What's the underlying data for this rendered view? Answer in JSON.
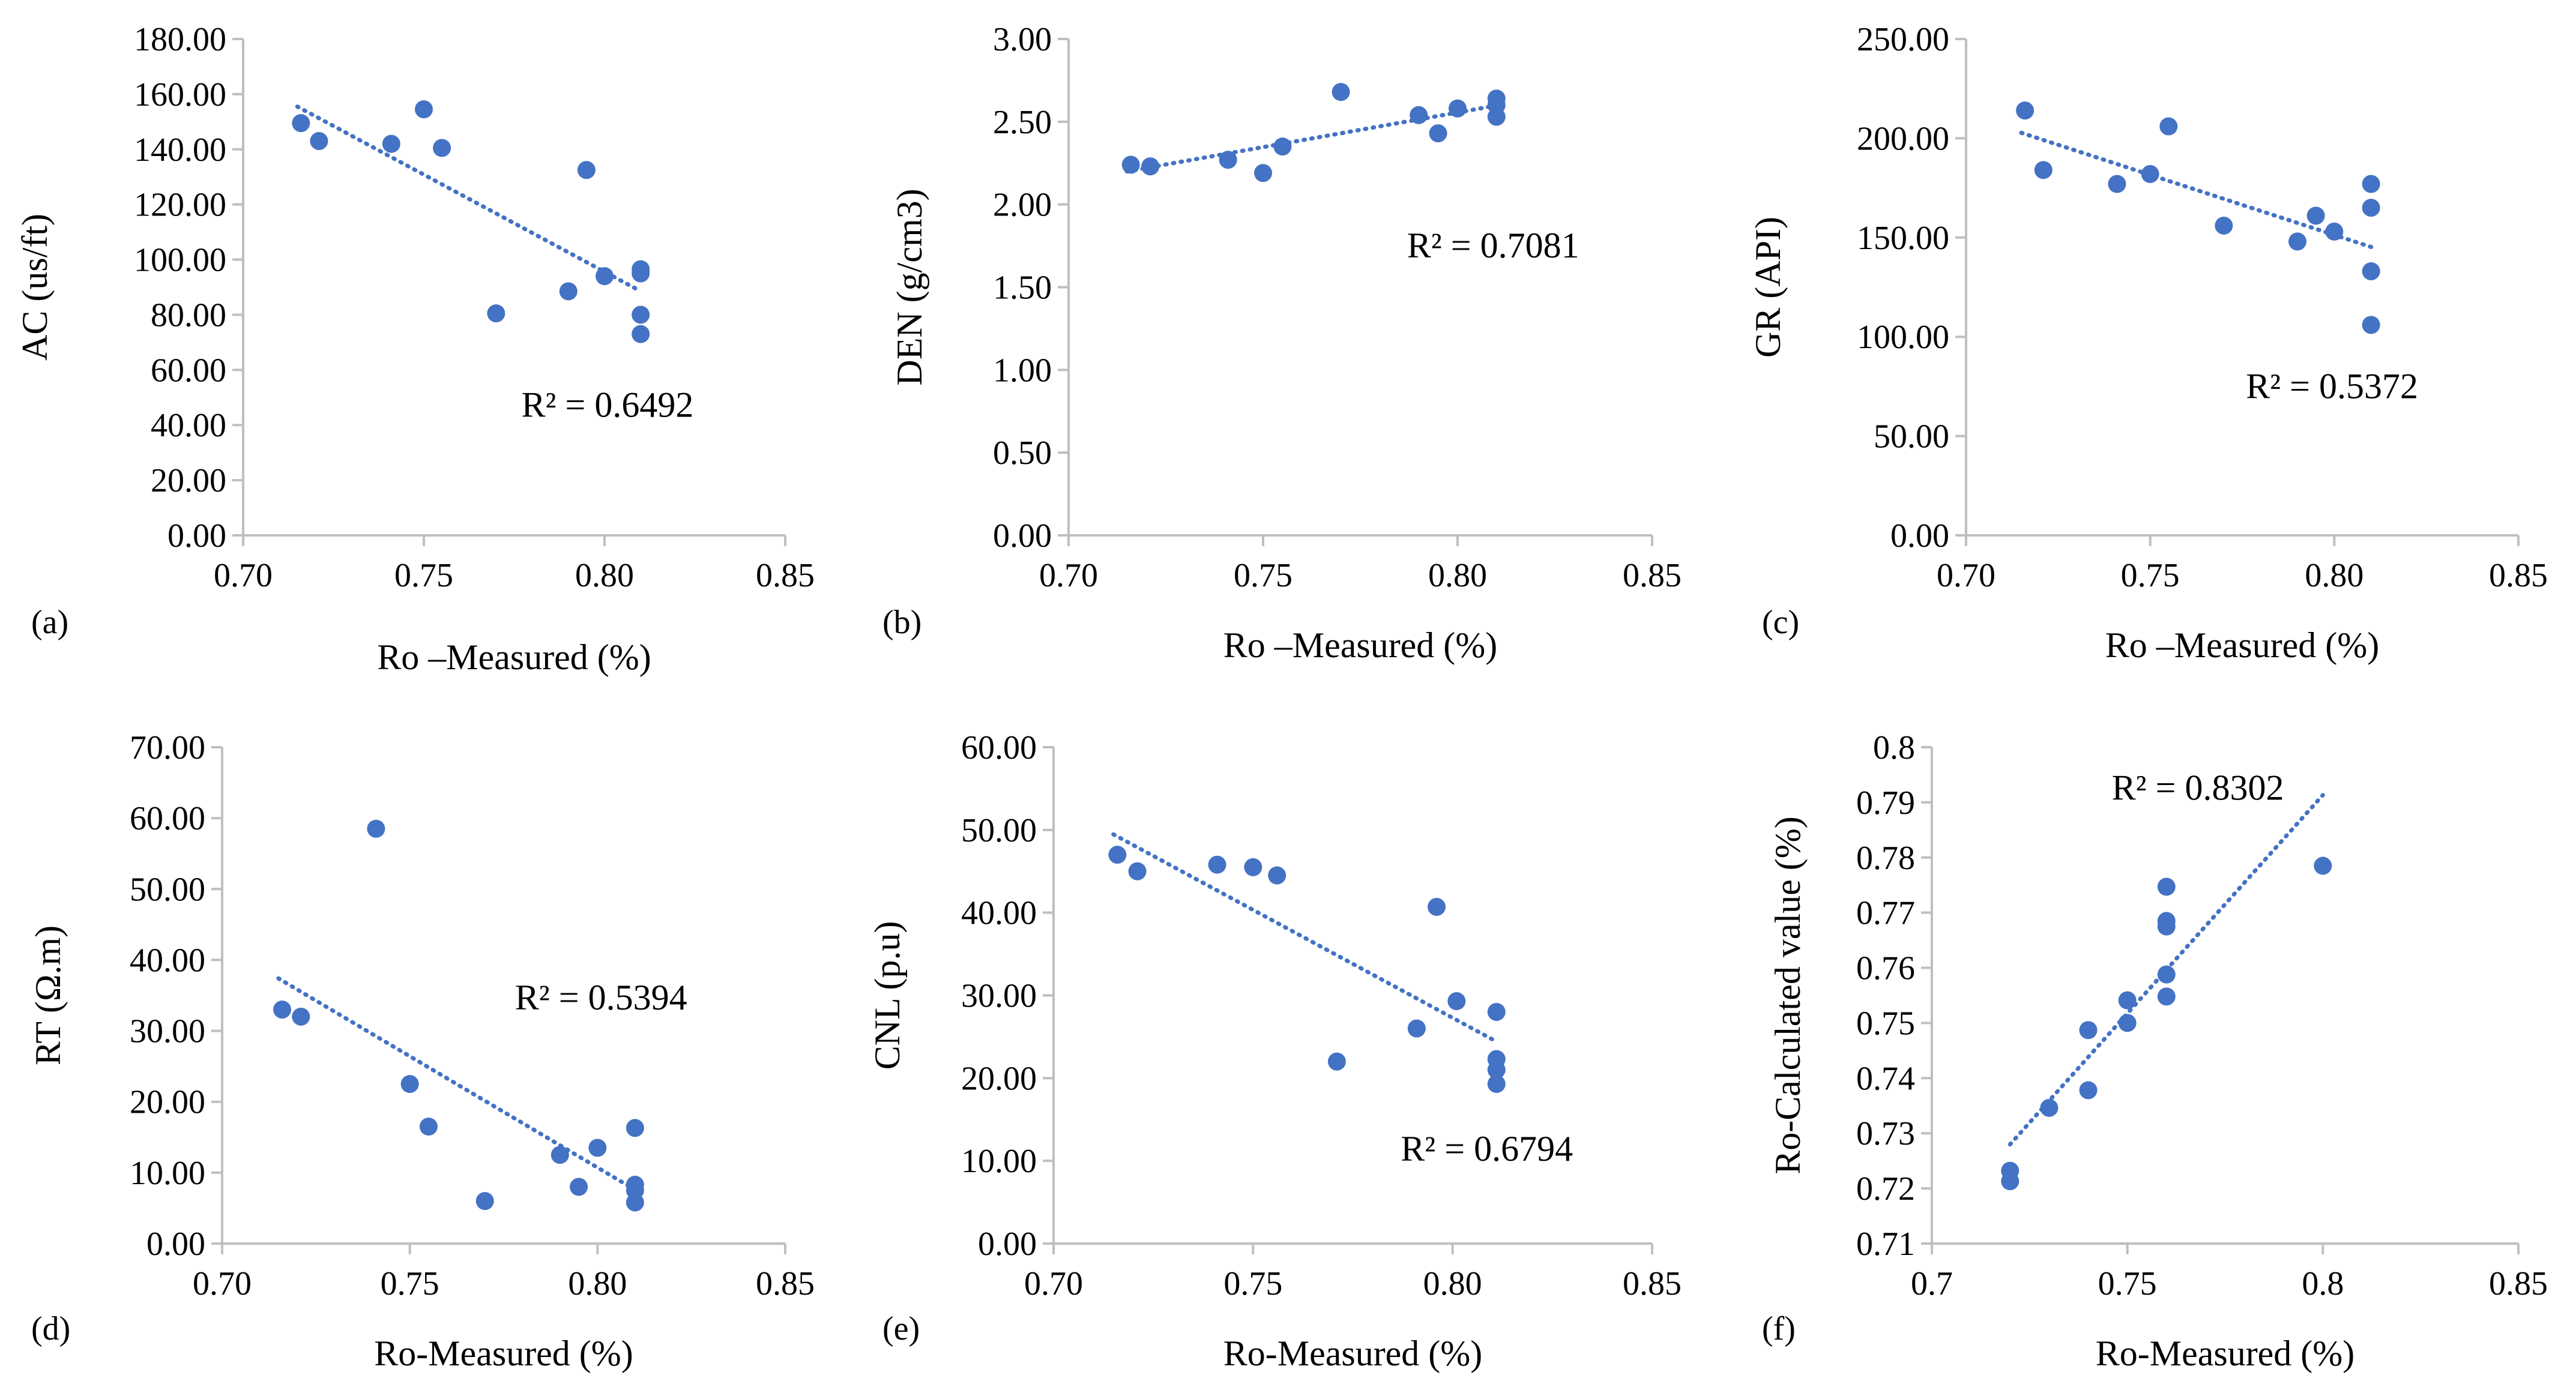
{
  "colors": {
    "series": "#4472C4",
    "axis": "#BFBFBF",
    "text": "#000000"
  },
  "chart_data": [
    {
      "panel": "(a)",
      "type": "scatter",
      "xlabel": "Ro –Measured (%)",
      "ylabel": "AC (us/ft)",
      "xlim": [
        0.7,
        0.85
      ],
      "ylim": [
        0,
        180
      ],
      "x_ticks": [
        0.7,
        0.75,
        0.8,
        0.85
      ],
      "x_tick_labels": [
        "0.70",
        "0.75",
        "0.80",
        "0.85"
      ],
      "y_ticks": [
        0,
        20,
        40,
        60,
        80,
        100,
        120,
        140,
        160,
        180
      ],
      "y_tick_labels": [
        "0.00",
        "20.00",
        "40.00",
        "60.00",
        "80.00",
        "100.00",
        "120.00",
        "140.00",
        "160.00",
        "180.00"
      ],
      "points": [
        [
          0.716,
          149.5
        ],
        [
          0.721,
          143
        ],
        [
          0.741,
          142
        ],
        [
          0.75,
          154.5
        ],
        [
          0.755,
          140.5
        ],
        [
          0.77,
          80.5
        ],
        [
          0.79,
          88.5
        ],
        [
          0.795,
          132.5
        ],
        [
          0.8,
          94
        ],
        [
          0.81,
          96.5
        ],
        [
          0.81,
          95
        ],
        [
          0.81,
          80
        ],
        [
          0.81,
          73
        ]
      ],
      "trendline": {
        "x0": 0.715,
        "x1": 0.81
      },
      "r2_label": "R² = 0.6492",
      "r2_anchor": [
        0.777,
        43
      ]
    },
    {
      "panel": "(b)",
      "type": "scatter",
      "xlabel": "Ro –Measured (%)",
      "ylabel": "DEN (g/cm3)",
      "xlim": [
        0.7,
        0.85
      ],
      "ylim": [
        0,
        3
      ],
      "x_ticks": [
        0.7,
        0.75,
        0.8,
        0.85
      ],
      "x_tick_labels": [
        "0.70",
        "0.75",
        "0.80",
        "0.85"
      ],
      "y_ticks": [
        0,
        0.5,
        1,
        1.5,
        2,
        2.5,
        3
      ],
      "y_tick_labels": [
        "0.00",
        "0.50",
        "1.00",
        "1.50",
        "2.00",
        "2.50",
        "3.00"
      ],
      "points": [
        [
          0.716,
          2.24
        ],
        [
          0.721,
          2.23
        ],
        [
          0.741,
          2.27
        ],
        [
          0.75,
          2.19
        ],
        [
          0.755,
          2.35
        ],
        [
          0.77,
          2.68
        ],
        [
          0.79,
          2.54
        ],
        [
          0.795,
          2.43
        ],
        [
          0.8,
          2.58
        ],
        [
          0.81,
          2.64
        ],
        [
          0.81,
          2.6
        ],
        [
          0.81,
          2.53
        ]
      ],
      "trendline": {
        "x0": 0.715,
        "x1": 0.81
      },
      "r2_label": "R² = 0.7081",
      "r2_anchor": [
        0.787,
        1.68
      ]
    },
    {
      "panel": "(c)",
      "type": "scatter",
      "xlabel": "Ro –Measured (%)",
      "ylabel": "GR (API)",
      "xlim": [
        0.7,
        0.85
      ],
      "ylim": [
        0,
        250
      ],
      "x_ticks": [
        0.7,
        0.75,
        0.8,
        0.85
      ],
      "x_tick_labels": [
        "0.70",
        "0.75",
        "0.80",
        "0.85"
      ],
      "y_ticks": [
        0,
        50,
        100,
        150,
        200,
        250
      ],
      "y_tick_labels": [
        "0.00",
        "50.00",
        "100.00",
        "150.00",
        "200.00",
        "250.00"
      ],
      "points": [
        [
          0.716,
          214
        ],
        [
          0.721,
          184
        ],
        [
          0.741,
          177
        ],
        [
          0.75,
          182
        ],
        [
          0.755,
          206
        ],
        [
          0.77,
          156
        ],
        [
          0.79,
          148
        ],
        [
          0.795,
          161
        ],
        [
          0.8,
          153
        ],
        [
          0.81,
          177
        ],
        [
          0.81,
          165
        ],
        [
          0.81,
          133
        ],
        [
          0.81,
          106
        ]
      ],
      "trendline": {
        "x0": 0.715,
        "x1": 0.81
      },
      "r2_label": "R² = 0.5372",
      "r2_anchor": [
        0.776,
        69
      ]
    },
    {
      "panel": "(d)",
      "type": "scatter",
      "xlabel": "Ro-Measured  (%)",
      "ylabel": "RT (Ω.m)",
      "xlim": [
        0.7,
        0.85
      ],
      "ylim": [
        0,
        70
      ],
      "x_ticks": [
        0.7,
        0.75,
        0.8,
        0.85
      ],
      "x_tick_labels": [
        "0.70",
        "0.75",
        "0.80",
        "0.85"
      ],
      "y_ticks": [
        0,
        10,
        20,
        30,
        40,
        50,
        60,
        70
      ],
      "y_tick_labels": [
        "0.00",
        "10.00",
        "20.00",
        "30.00",
        "40.00",
        "50.00",
        "60.00",
        "70.00"
      ],
      "points": [
        [
          0.716,
          33
        ],
        [
          0.721,
          32
        ],
        [
          0.741,
          58.5
        ],
        [
          0.75,
          22.5
        ],
        [
          0.755,
          16.5
        ],
        [
          0.77,
          6
        ],
        [
          0.79,
          12.5
        ],
        [
          0.795,
          8
        ],
        [
          0.8,
          13.5
        ],
        [
          0.81,
          16.3
        ],
        [
          0.81,
          8.3
        ],
        [
          0.81,
          7.5
        ],
        [
          0.81,
          5.8
        ]
      ],
      "trendline": {
        "x0": 0.715,
        "x1": 0.81
      },
      "r2_label": "R² = 0.5394",
      "r2_anchor": [
        0.778,
        33
      ]
    },
    {
      "panel": "(e)",
      "type": "scatter",
      "xlabel": "Ro-Measured (%)",
      "ylabel": "CNL (p.u)",
      "xlim": [
        0.7,
        0.85
      ],
      "ylim": [
        0,
        60
      ],
      "x_ticks": [
        0.7,
        0.75,
        0.8,
        0.85
      ],
      "x_tick_labels": [
        "0.70",
        "0.75",
        "0.80",
        "0.85"
      ],
      "y_ticks": [
        0,
        10,
        20,
        30,
        40,
        50,
        60
      ],
      "y_tick_labels": [
        "0.00",
        "10.00",
        "20.00",
        "30.00",
        "40.00",
        "50.00",
        "60.00"
      ],
      "points": [
        [
          0.716,
          47
        ],
        [
          0.721,
          45
        ],
        [
          0.741,
          45.8
        ],
        [
          0.75,
          45.5
        ],
        [
          0.756,
          44.5
        ],
        [
          0.771,
          22
        ],
        [
          0.791,
          26
        ],
        [
          0.796,
          40.7
        ],
        [
          0.801,
          29.3
        ],
        [
          0.811,
          28
        ],
        [
          0.811,
          22.3
        ],
        [
          0.811,
          21
        ],
        [
          0.811,
          19.3
        ]
      ],
      "trendline": {
        "x0": 0.715,
        "x1": 0.81
      },
      "r2_label": "R² = 0.6794",
      "r2_anchor": [
        0.787,
        10
      ]
    },
    {
      "panel": "(f)",
      "type": "scatter",
      "xlabel": "Ro-Measured (%)",
      "ylabel": "Ro-Calculated value (%)",
      "xlim": [
        0.7,
        0.85
      ],
      "ylim": [
        0.71,
        0.8
      ],
      "x_ticks": [
        0.7,
        0.75,
        0.8,
        0.85
      ],
      "x_tick_labels": [
        "0.7",
        "0.75",
        "0.8",
        "0.85"
      ],
      "y_ticks": [
        0.71,
        0.72,
        0.73,
        0.74,
        0.75,
        0.76,
        0.77,
        0.78,
        0.79,
        0.8
      ],
      "y_tick_labels": [
        "0.71",
        "0.72",
        "0.73",
        "0.74",
        "0.75",
        "0.76",
        "0.77",
        "0.78",
        "0.79",
        "0.8"
      ],
      "points": [
        [
          0.72,
          0.7232
        ],
        [
          0.72,
          0.7213
        ],
        [
          0.73,
          0.7346
        ],
        [
          0.74,
          0.7487
        ],
        [
          0.74,
          0.7378
        ],
        [
          0.75,
          0.7541
        ],
        [
          0.75,
          0.75
        ],
        [
          0.76,
          0.7747
        ],
        [
          0.76,
          0.7685
        ],
        [
          0.76,
          0.7675
        ],
        [
          0.76,
          0.7588
        ],
        [
          0.76,
          0.7548
        ],
        [
          0.8,
          0.7785
        ]
      ],
      "trendline": {
        "x0": 0.72,
        "x1": 0.8
      },
      "r2_label": "R² = 0.8302",
      "r2_anchor": [
        0.746,
        0.7905
      ]
    }
  ]
}
